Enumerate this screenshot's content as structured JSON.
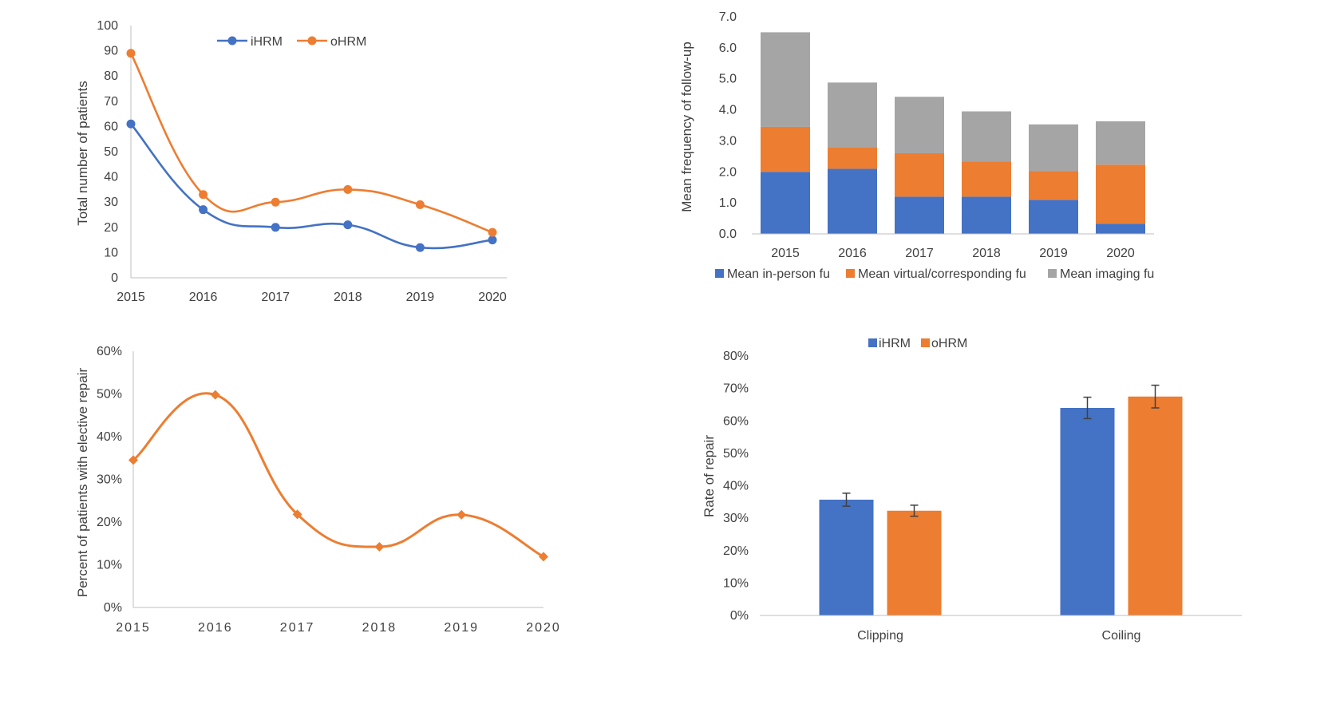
{
  "chart_data": [
    {
      "id": "chart1",
      "type": "line",
      "smooth": true,
      "title": "",
      "xlabel": "",
      "ylabel": "Total number of patients",
      "x": [
        "2015",
        "2016",
        "2017",
        "2018",
        "2019",
        "2020"
      ],
      "ylim": [
        0,
        100
      ],
      "yticks": [
        "0",
        "10",
        "20",
        "30",
        "40",
        "50",
        "60",
        "70",
        "80",
        "90",
        "100"
      ],
      "legend_position": "top-center",
      "grid": false,
      "series": [
        {
          "name": "iHRM",
          "color": "#4472C4",
          "marker": "circle",
          "values": [
            61,
            27,
            20,
            21,
            12,
            15
          ]
        },
        {
          "name": "oHRM",
          "color": "#ED7D31",
          "marker": "circle",
          "values": [
            89,
            33,
            30,
            35,
            29,
            18
          ]
        }
      ]
    },
    {
      "id": "chart2",
      "type": "bar",
      "stacked": true,
      "title": "",
      "xlabel": "",
      "ylabel": "Mean frequency of follow-up",
      "categories": [
        "2015",
        "2016",
        "2017",
        "2018",
        "2019",
        "2020"
      ],
      "ylim": [
        0,
        7
      ],
      "yticks": [
        "0.0",
        "1.0",
        "2.0",
        "3.0",
        "4.0",
        "5.0",
        "6.0",
        "7.0"
      ],
      "legend_position": "bottom",
      "grid": false,
      "series": [
        {
          "name": "Mean in-person fu",
          "color": "#4472C4",
          "values": [
            2.0,
            2.1,
            1.2,
            1.2,
            1.1,
            0.33
          ]
        },
        {
          "name": "Mean virtual/corresponding fu",
          "color": "#ED7D31",
          "values": [
            1.45,
            0.7,
            1.4,
            1.13,
            0.93,
            1.9
          ]
        },
        {
          "name": "Mean imaging fu",
          "color": "#A5A5A5",
          "values": [
            3.05,
            2.08,
            1.82,
            1.62,
            1.5,
            1.4
          ]
        }
      ]
    },
    {
      "id": "chart3",
      "type": "line",
      "smooth": true,
      "title": "",
      "xlabel": "",
      "ylabel": "Percent of patients with elective repair",
      "x": [
        "2015",
        "2016",
        "2017",
        "2018",
        "2019",
        "2020"
      ],
      "ylim": [
        0,
        60
      ],
      "yticks": [
        "0%",
        "10%",
        "20%",
        "30%",
        "40%",
        "50%",
        "60%"
      ],
      "grid": false,
      "series": [
        {
          "color": "#ED7D31",
          "marker": "diamond",
          "values": [
            34.5,
            49.8,
            21.8,
            14.2,
            21.7,
            11.9
          ]
        }
      ]
    },
    {
      "id": "chart4",
      "type": "bar",
      "title": "",
      "xlabel": "",
      "ylabel": "Rate of repair",
      "categories": [
        "Clipping",
        "Coiling"
      ],
      "ylim": [
        0,
        80
      ],
      "yticks": [
        "0%",
        "10%",
        "20%",
        "30%",
        "40%",
        "50%",
        "60%",
        "70%",
        "80%"
      ],
      "legend_position": "top-center",
      "grid": false,
      "error_bars": true,
      "series": [
        {
          "name": "iHRM",
          "color": "#4472C4",
          "values": [
            35.7,
            64.0
          ],
          "errors": [
            2.0,
            3.3
          ]
        },
        {
          "name": "oHRM",
          "color": "#ED7D31",
          "values": [
            32.3,
            67.5
          ],
          "errors": [
            1.7,
            3.5
          ]
        }
      ]
    }
  ]
}
